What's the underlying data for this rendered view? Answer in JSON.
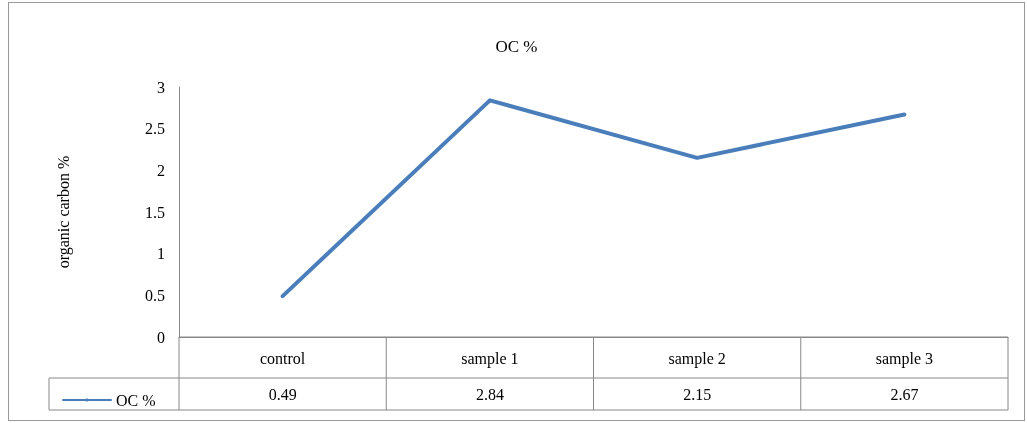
{
  "chart_data": {
    "type": "line",
    "title": "OC %",
    "ylabel": "organic carbon %",
    "categories": [
      "control",
      "sample 1",
      "sample 2",
      "sample 3"
    ],
    "series": [
      {
        "name": "OC %",
        "color": "#4a7ebb",
        "values": [
          0.49,
          2.84,
          2.15,
          2.67
        ]
      }
    ],
    "ylim": [
      0,
      3
    ],
    "yticks": [
      0,
      0.5,
      1,
      1.5,
      2,
      2.5,
      3
    ],
    "grid": false,
    "legend": "bottom left",
    "marker": "none",
    "line_style": "solid",
    "data_labels": true
  }
}
